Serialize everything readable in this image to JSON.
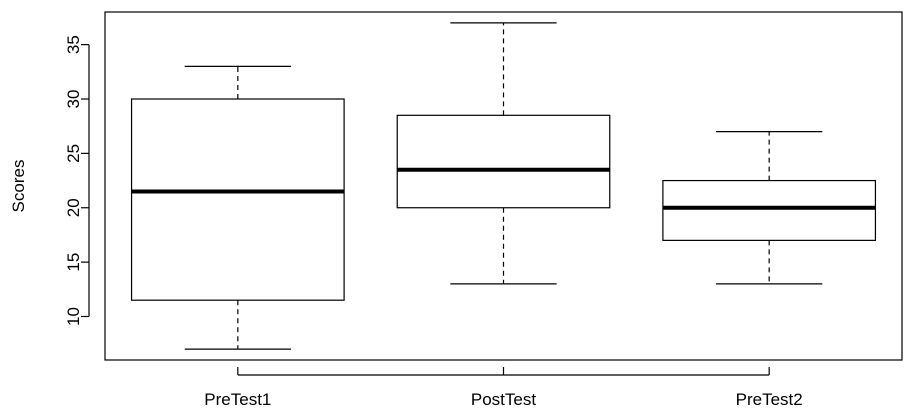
{
  "chart_data": {
    "type": "box",
    "title": "",
    "xlabel": "",
    "ylabel": "Scores",
    "ylim": [
      6,
      38
    ],
    "yticks": [
      10,
      15,
      20,
      25,
      30,
      35
    ],
    "categories": [
      "PreTest1",
      "PostTest",
      "PreTest2"
    ],
    "boxes": [
      {
        "name": "PreTest1",
        "whisker_low": 7,
        "q1": 11.5,
        "median": 21.5,
        "q3": 30,
        "whisker_high": 33
      },
      {
        "name": "PostTest",
        "whisker_low": 13,
        "q1": 20,
        "median": 23.5,
        "q3": 28.5,
        "whisker_high": 37
      },
      {
        "name": "PreTest2",
        "whisker_low": 13,
        "q1": 17,
        "median": 20,
        "q3": 22.5,
        "whisker_high": 27
      }
    ],
    "grid": false,
    "legend": "none"
  }
}
